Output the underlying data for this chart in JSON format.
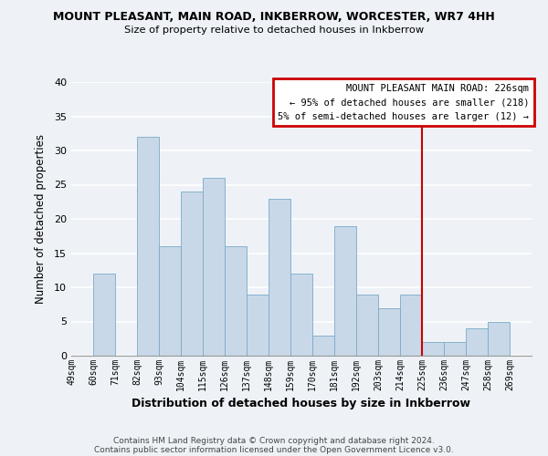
{
  "title": "MOUNT PLEASANT, MAIN ROAD, INKBERROW, WORCESTER, WR7 4HH",
  "subtitle": "Size of property relative to detached houses in Inkberrow",
  "xlabel": "Distribution of detached houses by size in Inkberrow",
  "ylabel": "Number of detached properties",
  "footer_line1": "Contains HM Land Registry data © Crown copyright and database right 2024.",
  "footer_line2": "Contains public sector information licensed under the Open Government Licence v3.0.",
  "bin_labels": [
    "49sqm",
    "60sqm",
    "71sqm",
    "82sqm",
    "93sqm",
    "104sqm",
    "115sqm",
    "126sqm",
    "137sqm",
    "148sqm",
    "159sqm",
    "170sqm",
    "181sqm",
    "192sqm",
    "203sqm",
    "214sqm",
    "225sqm",
    "236sqm",
    "247sqm",
    "258sqm",
    "269sqm"
  ],
  "bar_heights": [
    0,
    12,
    0,
    32,
    16,
    24,
    26,
    16,
    9,
    23,
    12,
    3,
    19,
    9,
    7,
    9,
    2,
    2,
    4,
    5,
    0
  ],
  "bar_color": "#c8d8e8",
  "bar_edge_color": "#7aaac8",
  "ylim": [
    0,
    40
  ],
  "yticks": [
    0,
    5,
    10,
    15,
    20,
    25,
    30,
    35,
    40
  ],
  "vline_x": 16,
  "vline_color": "#cc0000",
  "legend_title": "MOUNT PLEASANT MAIN ROAD: 226sqm",
  "legend_line1": "← 95% of detached houses are smaller (218)",
  "legend_line2": "5% of semi-detached houses are larger (12) →",
  "legend_box_color": "#cc0000",
  "bg_color": "#eef2f7"
}
